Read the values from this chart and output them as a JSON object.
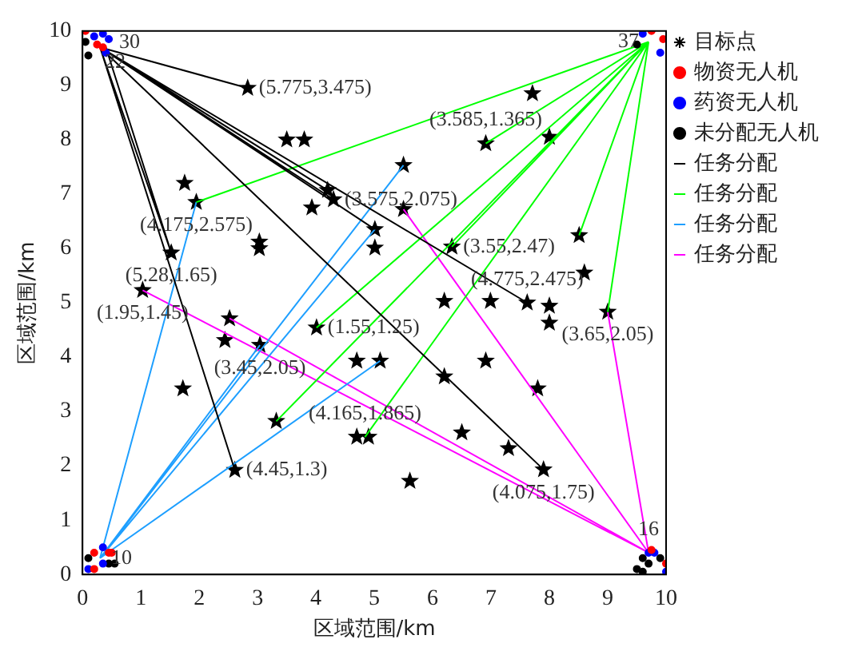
{
  "chart_data": {
    "type": "scatter",
    "xlabel": "区域范围/km",
    "ylabel": "区域范围/km",
    "xlim": [
      0,
      10
    ],
    "ylim": [
      0,
      10
    ],
    "xticks": [
      0,
      1,
      2,
      3,
      4,
      5,
      6,
      7,
      8,
      9,
      10
    ],
    "yticks": [
      0,
      1,
      2,
      3,
      4,
      5,
      6,
      7,
      8,
      9,
      10
    ],
    "grid": false,
    "legend": "right",
    "series": [
      {
        "name": "目标点",
        "type": "scatter",
        "marker": "star",
        "color": "#000000",
        "x": [
          2.83,
          3.5,
          3.8,
          1.75,
          1.95,
          4.2,
          4.3,
          3.93,
          3.03,
          3.03,
          1.52,
          1.03,
          2.52,
          2.44,
          3.04,
          1.72,
          4.01,
          4.7,
          3.32,
          4.7,
          4.9,
          2.61,
          7.71,
          6.91,
          8.0,
          5.5,
          5.5,
          5.01,
          5.01,
          6.33,
          8.51,
          8.6,
          6.2,
          6.99,
          7.62,
          8.0,
          8.0,
          9.0,
          5.1,
          6.91,
          6.2,
          7.8,
          6.5,
          7.3,
          7.9,
          5.61
        ],
        "values": [
          8.95,
          8.0,
          8.0,
          7.2,
          6.85,
          7.07,
          6.9,
          6.75,
          6.12,
          6.0,
          5.92,
          5.23,
          4.71,
          4.31,
          4.22,
          3.42,
          4.54,
          3.93,
          2.82,
          2.53,
          2.53,
          1.92,
          8.85,
          7.93,
          8.05,
          7.53,
          6.72,
          6.35,
          6.01,
          6.03,
          6.24,
          5.55,
          5.03,
          5.03,
          5.0,
          4.94,
          4.63,
          4.83,
          3.93,
          3.93,
          3.64,
          3.42,
          2.61,
          2.32,
          1.93,
          1.72
        ]
      },
      {
        "name": "物资无人机",
        "type": "scatter",
        "marker": "circle",
        "color": "#ff0000",
        "x": [
          0.05,
          0.25,
          0.35,
          9.75,
          9.95,
          0.2,
          0.2,
          0.45,
          0.5,
          9.75,
          10.0
        ],
        "values": [
          10.0,
          9.75,
          9.7,
          10.0,
          9.85,
          0.1,
          0.4,
          0.4,
          0.4,
          0.45,
          0.2
        ]
      },
      {
        "name": "药资无人机",
        "type": "scatter",
        "marker": "circle",
        "color": "#0000ff",
        "x": [
          0.2,
          0.35,
          0.45,
          0.4,
          9.9,
          9.6,
          0.1,
          0.35,
          0.35,
          9.7,
          9.8,
          10.0
        ],
        "values": [
          9.9,
          9.95,
          9.85,
          9.6,
          9.6,
          9.95,
          0.1,
          0.5,
          0.2,
          0.4,
          0.4,
          0.05
        ]
      },
      {
        "name": "未分配无人机",
        "type": "scatter",
        "marker": "circle",
        "color": "#000000",
        "x": [
          0.1,
          0.05,
          9.5,
          0.1,
          0.45,
          0.55,
          9.5,
          9.6,
          9.7,
          9.9,
          9.6
        ],
        "values": [
          9.55,
          9.8,
          9.75,
          0.3,
          0.2,
          0.2,
          0.1,
          0.3,
          0.2,
          0.3,
          0.05
        ]
      },
      {
        "name": "任务分配",
        "type": "line",
        "marker": "none",
        "color": "#000000",
        "x": [
          0.3,
          2.83,
          null,
          0.3,
          4.2,
          null,
          0.3,
          4.3,
          null,
          0.3,
          5.01,
          null,
          0.3,
          7.62,
          null,
          0.3,
          7.9,
          null,
          0.3,
          1.52,
          null,
          0.4,
          1.52,
          null,
          0.3,
          2.61
        ],
        "values": [
          9.7,
          8.95,
          null,
          9.7,
          7.07,
          null,
          9.7,
          6.9,
          null,
          9.7,
          6.35,
          null,
          9.7,
          5.0,
          null,
          9.7,
          1.93,
          null,
          9.7,
          5.92,
          null,
          9.7,
          5.92,
          null,
          9.7,
          1.92
        ]
      },
      {
        "name": "任务分配",
        "type": "line",
        "marker": "none",
        "color": "#00ff00",
        "x": [
          9.7,
          1.95,
          null,
          9.7,
          6.91,
          null,
          9.7,
          6.33,
          null,
          9.7,
          4.01,
          null,
          9.7,
          3.32,
          null,
          9.7,
          4.84,
          null,
          9.7,
          8.51,
          null,
          9.7,
          9.0
        ],
        "values": [
          9.8,
          6.85,
          null,
          9.8,
          7.93,
          null,
          9.8,
          6.03,
          null,
          9.8,
          4.54,
          null,
          9.8,
          2.82,
          null,
          9.8,
          2.53,
          null,
          9.8,
          6.24,
          null,
          9.8,
          4.83
        ]
      },
      {
        "name": "任务分配",
        "type": "line",
        "marker": "none",
        "color": "#1e9fff",
        "x": [
          0.3,
          1.95,
          null,
          0.3,
          5.5,
          null,
          0.3,
          5.1,
          null,
          0.3,
          3.04,
          null,
          0.3,
          5.01
        ],
        "values": [
          0.3,
          6.85,
          null,
          0.3,
          7.53,
          null,
          0.3,
          3.93,
          null,
          0.3,
          4.22,
          null,
          0.3,
          6.35
        ]
      },
      {
        "name": "任务分配",
        "type": "line",
        "marker": "none",
        "color": "#ff00ff",
        "x": [
          9.7,
          1.03,
          null,
          9.7,
          2.52,
          null,
          9.7,
          5.5,
          null,
          9.7,
          9.0
        ],
        "values": [
          0.4,
          5.23,
          null,
          0.4,
          4.71,
          null,
          0.4,
          6.72,
          null,
          0.4,
          4.83
        ]
      }
    ],
    "annotations": [
      {
        "text": "30",
        "x": 0.3,
        "y": 9.7
      },
      {
        "text": "22",
        "x": 0.3,
        "y": 9.7
      },
      {
        "text": "37",
        "x": 9.7,
        "y": 9.8
      },
      {
        "text": "10",
        "x": 0.3,
        "y": 0.3
      },
      {
        "text": "16",
        "x": 9.7,
        "y": 0.4
      },
      {
        "text": "(5.775,3.475)",
        "x": 2.83,
        "y": 8.95
      },
      {
        "text": "(3.575,2.075)",
        "x": 4.3,
        "y": 6.9
      },
      {
        "text": "(3.585,1.365)",
        "x": 6.91,
        "y": 7.93
      },
      {
        "text": "(4.175,2.575)",
        "x": 1.95,
        "y": 6.85
      },
      {
        "text": "(5.28,1.65)",
        "x": 1.52,
        "y": 5.92
      },
      {
        "text": "(1.95,1.45)",
        "x": 1.03,
        "y": 5.23
      },
      {
        "text": "(3.55,2.47)",
        "x": 6.33,
        "y": 6.03
      },
      {
        "text": "(4.775,2.475)",
        "x": 7.62,
        "y": 5.0
      },
      {
        "text": "(1.55,1.25)",
        "x": 4.01,
        "y": 4.54
      },
      {
        "text": "(3.45,2.05)",
        "x": 3.04,
        "y": 4.22
      },
      {
        "text": "(3.65,2.05)",
        "x": 9.0,
        "y": 4.83
      },
      {
        "text": "(4.165,1.865)",
        "x": 4.84,
        "y": 2.53
      },
      {
        "text": "(4.45,1.3)",
        "x": 2.61,
        "y": 1.92
      },
      {
        "text": "(4.075,1.75)",
        "x": 7.9,
        "y": 1.93
      }
    ]
  }
}
